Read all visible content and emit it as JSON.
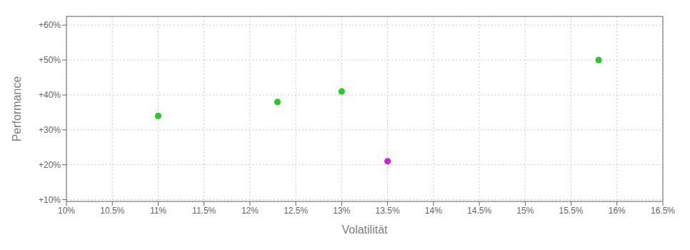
{
  "chart_data": {
    "type": "scatter",
    "xlabel": "Volatilität",
    "ylabel": "Performance",
    "x": [
      0.11,
      0.123,
      0.13,
      0.158,
      0.135
    ],
    "values": [
      0.34,
      0.38,
      0.41,
      0.5,
      0.21
    ],
    "colors": [
      "#22cc22",
      "#22cc22",
      "#22cc22",
      "#22cc22",
      "#cc22cc"
    ],
    "xlim": [
      0.1,
      0.165
    ],
    "ylim": [
      0.095,
      0.625
    ],
    "xticks": [
      {
        "value": 0.1,
        "label": "10%"
      },
      {
        "value": 0.105,
        "label": "10.5%"
      },
      {
        "value": 0.11,
        "label": "11%"
      },
      {
        "value": 0.115,
        "label": "11.5%"
      },
      {
        "value": 0.12,
        "label": "12%"
      },
      {
        "value": 0.125,
        "label": "12.5%"
      },
      {
        "value": 0.13,
        "label": "13%"
      },
      {
        "value": 0.135,
        "label": "13.5%"
      },
      {
        "value": 0.14,
        "label": "14%"
      },
      {
        "value": 0.145,
        "label": "14.5%"
      },
      {
        "value": 0.15,
        "label": "15%"
      },
      {
        "value": 0.155,
        "label": "15.5%"
      },
      {
        "value": 0.16,
        "label": "16%"
      },
      {
        "value": 0.165,
        "label": "16.5%"
      }
    ],
    "yticks": [
      {
        "value": 0.1,
        "label": "+10%"
      },
      {
        "value": 0.2,
        "label": "+20%"
      },
      {
        "value": 0.3,
        "label": "+30%"
      },
      {
        "value": 0.4,
        "label": "+40%"
      },
      {
        "value": 0.5,
        "label": "+50%"
      },
      {
        "value": 0.6,
        "label": "+60%"
      }
    ],
    "grid": true
  }
}
